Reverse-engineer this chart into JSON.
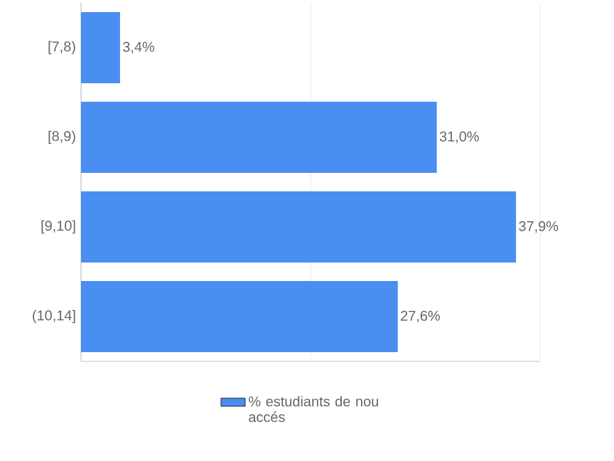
{
  "chart_data": {
    "type": "bar",
    "orientation": "horizontal",
    "categories": [
      "[7,8)",
      "[8,9)",
      "[9,10]",
      "(10,14]"
    ],
    "series": [
      {
        "name": "% estudiants de nou accés",
        "color": "#4a8ef2",
        "values": [
          3.4,
          31.0,
          37.9,
          27.6
        ],
        "value_labels": [
          "3,4%",
          "31,0%",
          "37,9%",
          "27,6%"
        ]
      }
    ],
    "xlim": [
      0,
      40
    ],
    "xticks": [
      {
        "value": 0,
        "label": null
      },
      {
        "value": 20,
        "label": null
      },
      {
        "value": 40,
        "label": null
      }
    ],
    "grid": "x",
    "legend": "bottom"
  }
}
